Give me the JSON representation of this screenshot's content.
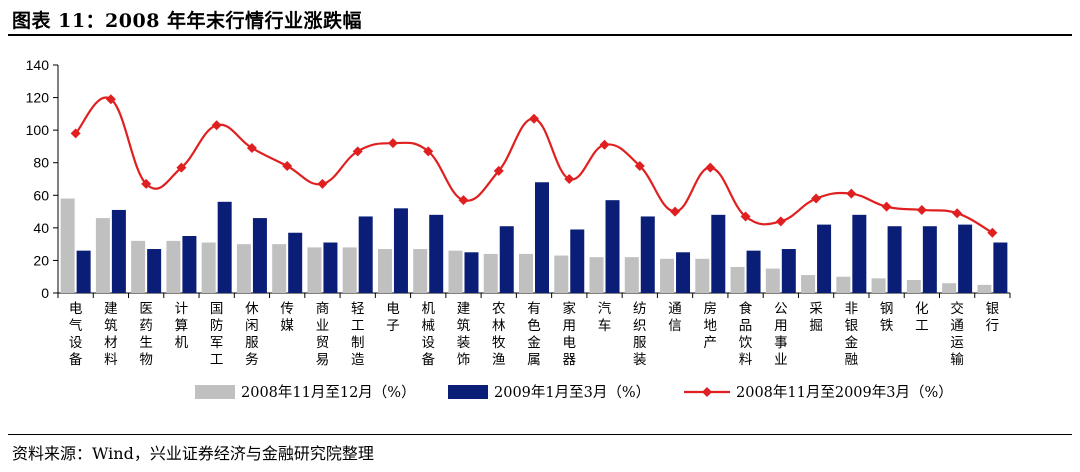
{
  "header": {
    "title": "图表 11：2008 年年末行情行业涨跌幅"
  },
  "footer": {
    "source": "资料来源：Wind，兴业证券经济与金融研究院整理"
  },
  "chart_data": {
    "type": "bar",
    "ylim": [
      0,
      140
    ],
    "yticks": [
      0,
      20,
      40,
      60,
      80,
      100,
      120,
      140
    ],
    "grid": false,
    "legend": "bottom",
    "categories": [
      "电气设备",
      "建筑材料",
      "医药生物",
      "计算机",
      "国防军工",
      "休闲服务",
      "传媒",
      "商业贸易",
      "轻工制造",
      "电子",
      "机械设备",
      "建筑装饰",
      "农林牧渔",
      "有色金属",
      "家用电器",
      "汽车",
      "纺织服装",
      "通信",
      "房地产",
      "食品饮料",
      "公用事业",
      "采掘",
      "非银金融",
      "钢铁",
      "化工",
      "交通运输",
      "银行"
    ],
    "series": [
      {
        "name": "2008年11月至12月（%）",
        "type": "bar",
        "color": "#c0c0c0",
        "values": [
          58,
          46,
          32,
          32,
          31,
          30,
          30,
          28,
          28,
          27,
          27,
          26,
          24,
          24,
          23,
          22,
          22,
          21,
          21,
          16,
          15,
          11,
          10,
          9,
          8,
          6,
          5
        ]
      },
      {
        "name": "2009年1月至3月（%）",
        "type": "bar",
        "color": "#0a1e78",
        "values": [
          26,
          51,
          27,
          35,
          56,
          46,
          37,
          31,
          47,
          52,
          48,
          25,
          41,
          68,
          39,
          57,
          47,
          25,
          48,
          26,
          27,
          42,
          48,
          41,
          41,
          42,
          31
        ]
      },
      {
        "name": "2008年11月至2009年3月（%）",
        "type": "line",
        "color": "#e02020",
        "values": [
          98,
          119,
          67,
          77,
          103,
          89,
          78,
          67,
          87,
          92,
          87,
          57,
          75,
          107,
          70,
          91,
          78,
          50,
          77,
          47,
          44,
          58,
          61,
          53,
          51,
          49,
          37
        ]
      }
    ]
  }
}
